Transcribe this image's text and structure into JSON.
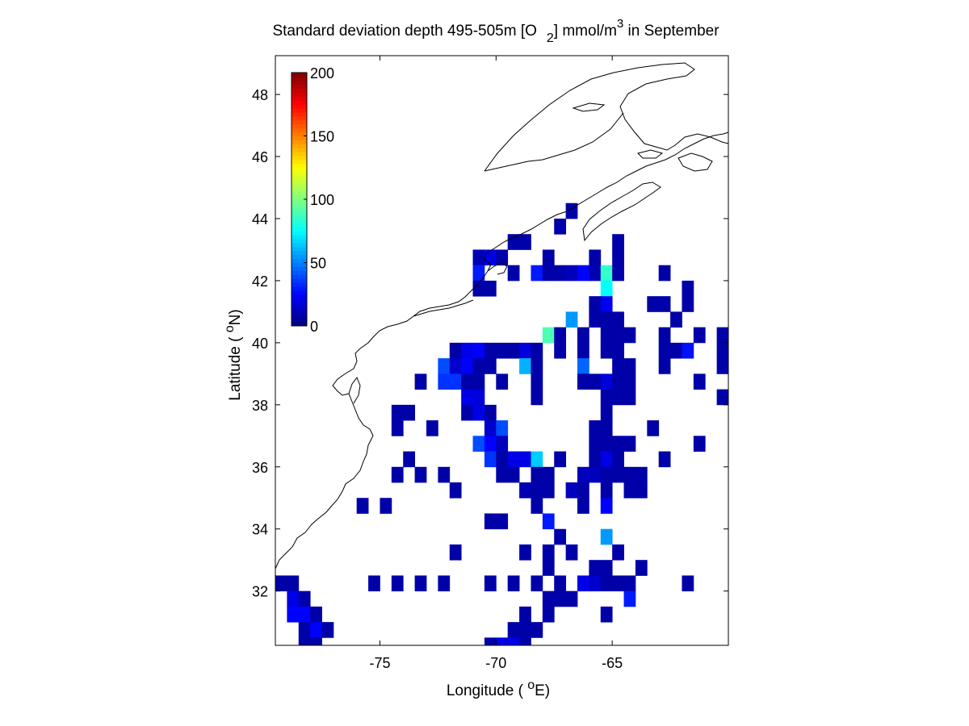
{
  "chart_data": {
    "type": "heatmap",
    "title": {
      "main": "Standard deviation depth 495-505m [O",
      "sub": "2",
      "mid": "] mmol/m",
      "sup": "3",
      "tail": " in September"
    },
    "xlabel": {
      "pre": "Longitude ( ",
      "sup": "o",
      "post": "E)"
    },
    "ylabel": {
      "pre": "Latitude ( ",
      "sup": "o",
      "post": "N)"
    },
    "xlim": [
      -79.5,
      -60.0
    ],
    "ylim": [
      30.25,
      49.25
    ],
    "xticks": [
      -75,
      -70,
      -65
    ],
    "yticks": [
      32,
      34,
      36,
      38,
      40,
      42,
      44,
      46,
      48
    ],
    "xtick_labels": [
      "-75",
      "-70",
      "-65"
    ],
    "ytick_labels": [
      "32",
      "34",
      "36",
      "38",
      "40",
      "42",
      "44",
      "46",
      "48"
    ],
    "colorbar": {
      "range": [
        0,
        200
      ],
      "ticks": [
        0,
        50,
        100,
        150,
        200
      ],
      "tick_labels": [
        "0",
        "50",
        "100",
        "150",
        "200"
      ],
      "colormap": "jet",
      "placement": "inside top-left"
    },
    "cell_size_deg": 0.5,
    "cells": [
      [
        -66.75,
        44.25,
        8
      ],
      [
        -67.25,
        43.75,
        8
      ],
      [
        -69.25,
        43.25,
        8
      ],
      [
        -68.75,
        43.25,
        8
      ],
      [
        -64.75,
        43.25,
        8
      ],
      [
        -70.75,
        42.75,
        10
      ],
      [
        -70.25,
        42.75,
        20
      ],
      [
        -69.75,
        42.75,
        8
      ],
      [
        -67.75,
        42.75,
        8
      ],
      [
        -65.75,
        42.75,
        8
      ],
      [
        -64.75,
        42.75,
        8
      ],
      [
        -70.75,
        42.25,
        30
      ],
      [
        -69.25,
        42.25,
        8
      ],
      [
        -68.25,
        42.25,
        30
      ],
      [
        -67.75,
        42.25,
        8
      ],
      [
        -67.25,
        42.25,
        8
      ],
      [
        -66.75,
        42.25,
        12
      ],
      [
        -66.25,
        42.25,
        25
      ],
      [
        -65.75,
        42.25,
        10
      ],
      [
        -65.25,
        42.25,
        85
      ],
      [
        -64.75,
        42.25,
        8
      ],
      [
        -62.75,
        42.25,
        8
      ],
      [
        -70.75,
        41.75,
        8
      ],
      [
        -70.25,
        41.75,
        8
      ],
      [
        -65.25,
        41.75,
        75
      ],
      [
        -61.75,
        41.75,
        8
      ],
      [
        -65.75,
        41.25,
        8
      ],
      [
        -65.25,
        41.25,
        22
      ],
      [
        -63.25,
        41.25,
        8
      ],
      [
        -62.75,
        41.25,
        8
      ],
      [
        -61.75,
        41.25,
        8
      ],
      [
        -66.75,
        40.75,
        55
      ],
      [
        -65.75,
        40.75,
        8
      ],
      [
        -65.25,
        40.75,
        8
      ],
      [
        -64.75,
        40.75,
        8
      ],
      [
        -62.25,
        40.75,
        8
      ],
      [
        -67.75,
        40.25,
        90
      ],
      [
        -67.25,
        40.25,
        8
      ],
      [
        -66.25,
        40.25,
        8
      ],
      [
        -65.25,
        40.25,
        8
      ],
      [
        -64.75,
        40.25,
        8
      ],
      [
        -64.25,
        40.25,
        8
      ],
      [
        -62.75,
        40.25,
        8
      ],
      [
        -61.25,
        40.25,
        8
      ],
      [
        -60.25,
        40.25,
        8
      ],
      [
        -71.75,
        39.75,
        8
      ],
      [
        -71.25,
        39.75,
        20
      ],
      [
        -70.75,
        39.75,
        25
      ],
      [
        -70.25,
        39.75,
        8
      ],
      [
        -69.75,
        39.75,
        8
      ],
      [
        -69.25,
        39.75,
        8
      ],
      [
        -68.75,
        39.75,
        18
      ],
      [
        -68.25,
        39.75,
        8
      ],
      [
        -67.25,
        39.75,
        8
      ],
      [
        -66.25,
        39.75,
        8
      ],
      [
        -65.25,
        39.75,
        8
      ],
      [
        -64.75,
        39.75,
        8
      ],
      [
        -62.75,
        39.75,
        8
      ],
      [
        -62.25,
        39.75,
        8
      ],
      [
        -61.75,
        39.75,
        28
      ],
      [
        -60.25,
        39.75,
        8
      ],
      [
        -72.25,
        39.25,
        40
      ],
      [
        -71.75,
        39.25,
        15
      ],
      [
        -71.25,
        39.25,
        25
      ],
      [
        -70.75,
        39.25,
        8
      ],
      [
        -70.25,
        39.25,
        8
      ],
      [
        -68.75,
        39.25,
        60
      ],
      [
        -68.25,
        39.25,
        8
      ],
      [
        -66.25,
        39.25,
        45
      ],
      [
        -64.75,
        39.25,
        8
      ],
      [
        -64.25,
        39.25,
        8
      ],
      [
        -62.75,
        39.25,
        8
      ],
      [
        -60.25,
        39.25,
        8
      ],
      [
        -73.25,
        38.75,
        8
      ],
      [
        -72.25,
        38.75,
        35
      ],
      [
        -71.75,
        38.75,
        35
      ],
      [
        -71.25,
        38.75,
        8
      ],
      [
        -70.75,
        38.75,
        8
      ],
      [
        -69.75,
        38.75,
        8
      ],
      [
        -68.25,
        38.75,
        8
      ],
      [
        -66.25,
        38.75,
        8
      ],
      [
        -65.75,
        38.75,
        8
      ],
      [
        -65.25,
        38.75,
        18
      ],
      [
        -64.75,
        38.75,
        8
      ],
      [
        -64.25,
        38.75,
        8
      ],
      [
        -61.25,
        38.75,
        8
      ],
      [
        -71.25,
        38.25,
        20
      ],
      [
        -70.75,
        38.25,
        18
      ],
      [
        -68.25,
        38.25,
        8
      ],
      [
        -65.25,
        38.25,
        8
      ],
      [
        -64.75,
        38.25,
        8
      ],
      [
        -64.25,
        38.25,
        8
      ],
      [
        -60.25,
        38.25,
        8
      ],
      [
        -74.25,
        37.75,
        8
      ],
      [
        -73.75,
        37.75,
        8
      ],
      [
        -71.25,
        37.75,
        8
      ],
      [
        -70.75,
        37.75,
        20
      ],
      [
        -70.25,
        37.75,
        8
      ],
      [
        -65.25,
        37.75,
        8
      ],
      [
        -74.25,
        37.25,
        8
      ],
      [
        -72.75,
        37.25,
        8
      ],
      [
        -70.25,
        37.25,
        15
      ],
      [
        -69.75,
        37.25,
        40
      ],
      [
        -65.75,
        37.25,
        8
      ],
      [
        -65.25,
        37.25,
        8
      ],
      [
        -63.25,
        37.25,
        8
      ],
      [
        -70.75,
        36.75,
        40
      ],
      [
        -70.25,
        36.75,
        25
      ],
      [
        -69.75,
        36.75,
        12
      ],
      [
        -65.75,
        36.75,
        8
      ],
      [
        -65.25,
        36.75,
        8
      ],
      [
        -64.75,
        36.75,
        8
      ],
      [
        -64.25,
        36.75,
        8
      ],
      [
        -61.25,
        36.75,
        8
      ],
      [
        -73.75,
        36.25,
        8
      ],
      [
        -70.25,
        36.25,
        35
      ],
      [
        -69.75,
        36.25,
        8
      ],
      [
        -69.25,
        36.25,
        20
      ],
      [
        -68.75,
        36.25,
        20
      ],
      [
        -68.25,
        36.25,
        65
      ],
      [
        -67.25,
        36.25,
        8
      ],
      [
        -65.75,
        36.25,
        8
      ],
      [
        -65.25,
        36.25,
        20
      ],
      [
        -64.75,
        36.25,
        8
      ],
      [
        -62.75,
        36.25,
        8
      ],
      [
        -74.25,
        35.75,
        8
      ],
      [
        -73.25,
        35.75,
        8
      ],
      [
        -72.25,
        35.75,
        8
      ],
      [
        -69.75,
        35.75,
        8
      ],
      [
        -69.25,
        35.75,
        8
      ],
      [
        -68.25,
        35.75,
        8
      ],
      [
        -67.75,
        35.75,
        8
      ],
      [
        -66.25,
        35.75,
        12
      ],
      [
        -65.75,
        35.75,
        12
      ],
      [
        -65.25,
        35.75,
        8
      ],
      [
        -64.75,
        35.75,
        8
      ],
      [
        -64.25,
        35.75,
        8
      ],
      [
        -63.75,
        35.75,
        8
      ],
      [
        -71.75,
        35.25,
        8
      ],
      [
        -68.75,
        35.25,
        10
      ],
      [
        -68.25,
        35.25,
        8
      ],
      [
        -67.75,
        35.25,
        8
      ],
      [
        -66.75,
        35.25,
        12
      ],
      [
        -66.25,
        35.25,
        8
      ],
      [
        -65.25,
        35.25,
        8
      ],
      [
        -64.25,
        35.25,
        8
      ],
      [
        -63.75,
        35.25,
        8
      ],
      [
        -75.75,
        34.75,
        8
      ],
      [
        -74.75,
        34.75,
        8
      ],
      [
        -68.25,
        34.75,
        8
      ],
      [
        -66.25,
        34.75,
        8
      ],
      [
        -65.25,
        34.75,
        25
      ],
      [
        -70.25,
        34.25,
        8
      ],
      [
        -69.75,
        34.25,
        8
      ],
      [
        -67.75,
        34.25,
        30
      ],
      [
        -67.25,
        33.75,
        8
      ],
      [
        -65.25,
        33.75,
        55
      ],
      [
        -71.75,
        33.25,
        8
      ],
      [
        -68.75,
        33.25,
        8
      ],
      [
        -67.75,
        33.25,
        8
      ],
      [
        -66.75,
        33.25,
        8
      ],
      [
        -64.75,
        33.25,
        8
      ],
      [
        -67.75,
        32.75,
        8
      ],
      [
        -65.75,
        32.75,
        8
      ],
      [
        -65.25,
        32.75,
        8
      ],
      [
        -63.75,
        32.75,
        8
      ],
      [
        -79.25,
        32.25,
        8
      ],
      [
        -78.75,
        32.25,
        8
      ],
      [
        -75.25,
        32.25,
        8
      ],
      [
        -74.25,
        32.25,
        8
      ],
      [
        -73.25,
        32.25,
        8
      ],
      [
        -72.25,
        32.25,
        8
      ],
      [
        -70.25,
        32.25,
        8
      ],
      [
        -69.25,
        32.25,
        8
      ],
      [
        -68.25,
        32.25,
        8
      ],
      [
        -67.25,
        32.25,
        8
      ],
      [
        -66.25,
        32.25,
        20
      ],
      [
        -65.75,
        32.25,
        15
      ],
      [
        -65.25,
        32.25,
        8
      ],
      [
        -64.75,
        32.25,
        8
      ],
      [
        -64.25,
        32.25,
        8
      ],
      [
        -61.75,
        32.25,
        8
      ],
      [
        -78.75,
        31.75,
        20
      ],
      [
        -78.25,
        31.75,
        8
      ],
      [
        -67.75,
        31.75,
        8
      ],
      [
        -67.25,
        31.75,
        8
      ],
      [
        -66.75,
        31.75,
        8
      ],
      [
        -64.25,
        31.75,
        30
      ],
      [
        -78.75,
        31.25,
        25
      ],
      [
        -78.25,
        31.25,
        25
      ],
      [
        -77.75,
        31.25,
        8
      ],
      [
        -68.75,
        31.25,
        8
      ],
      [
        -67.75,
        31.25,
        8
      ],
      [
        -65.25,
        31.25,
        8
      ],
      [
        -78.25,
        30.75,
        8
      ],
      [
        -77.75,
        30.75,
        25
      ],
      [
        -77.25,
        30.75,
        8
      ],
      [
        -69.25,
        30.75,
        8
      ],
      [
        -68.75,
        30.75,
        8
      ],
      [
        -68.25,
        30.75,
        8
      ],
      [
        -78.25,
        30.25,
        8
      ],
      [
        -77.75,
        30.25,
        8
      ],
      [
        -70.25,
        30.25,
        8
      ],
      [
        -69.75,
        30.25,
        20
      ],
      [
        -69.25,
        30.25,
        20
      ],
      [
        -68.75,
        30.25,
        8
      ]
    ]
  }
}
